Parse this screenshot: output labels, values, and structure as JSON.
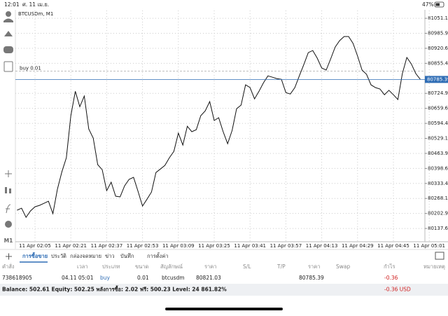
{
  "status_bar": {
    "time": "12:01",
    "date": "ศ. 11 เม.ย.",
    "battery": "47%"
  },
  "chart_data": {
    "type": "line",
    "title": "BTCUSDm, M1",
    "categories": [
      null,
      null,
      null,
      null,
      "11 Apr 02:05",
      null,
      null,
      null,
      null,
      null,
      null,
      null,
      "11 Apr 02:21",
      null,
      null,
      null,
      null,
      null,
      null,
      null,
      "11 Apr 02:37",
      null,
      null,
      null,
      null,
      null,
      null,
      null,
      "11 Apr 02:53",
      null,
      null,
      null,
      null,
      null,
      null,
      null,
      "11 Apr 03:09",
      null,
      null,
      null,
      null,
      null,
      null,
      null,
      "11 Apr 03:25",
      null,
      null,
      null,
      null,
      null,
      null,
      null,
      "11 Apr 03:41",
      null,
      null,
      null,
      null,
      null,
      null,
      null,
      "11 Apr 03:57",
      null,
      null,
      null,
      null,
      null,
      null,
      null,
      "11 Apr 04:13",
      null,
      null,
      null,
      null,
      null,
      null,
      null,
      "11 Apr 04:29",
      null,
      null,
      null,
      null,
      null,
      null,
      null,
      "11 Apr 04:45",
      null,
      null,
      null,
      null,
      null,
      null,
      null,
      "11 Apr 05:01"
    ],
    "series": [
      {
        "name": "BTCUSDm",
        "color": "#111111",
        "values": [
          80217,
          80226,
          80186,
          80214,
          80232,
          80238,
          80247,
          80256,
          80202,
          80308,
          80384,
          80445,
          80628,
          80734,
          80667,
          80713,
          80570,
          80530,
          80415,
          80393,
          80302,
          80339,
          80278,
          80275,
          80323,
          80351,
          80360,
          80299,
          80235,
          80265,
          80296,
          80381,
          80396,
          80412,
          80445,
          80473,
          80552,
          80500,
          80582,
          80558,
          80567,
          80628,
          80649,
          80689,
          80607,
          80619,
          80558,
          80506,
          80564,
          80658,
          80674,
          80762,
          80750,
          80701,
          80734,
          80771,
          80801,
          80795,
          80789,
          80786,
          80728,
          80722,
          80750,
          80801,
          80850,
          80902,
          80911,
          80878,
          80835,
          80826,
          80875,
          80926,
          80954,
          80972,
          80972,
          80942,
          80887,
          80826,
          80808,
          80762,
          80750,
          80744,
          80719,
          80738,
          80719,
          80698,
          80811,
          80881,
          80853,
          80811,
          80786,
          null,
          null
        ]
      }
    ],
    "ylim": [
      80080,
      81085
    ],
    "yticks": [
      81051.15,
      {
        "value": 80985.9,
        "label": "80985.90"
      },
      80920.65,
      {
        "value": 80855.4,
        "label": "80855.40"
      },
      {
        "value": 80724.9,
        "label": "80724.90"
      },
      80659.65,
      {
        "value": 80594.4,
        "label": "80594.40"
      },
      80529.15,
      {
        "value": 80463.9,
        "label": "80463.90"
      },
      80398.65,
      {
        "value": 80333.4,
        "label": "80333.40"
      },
      80268.15,
      {
        "value": 80202.9,
        "label": "80202.90"
      },
      80137.65
    ],
    "grid": true,
    "price_line": {
      "value": 80785.39,
      "color": "#2f6db5"
    },
    "order_line": {
      "label": "buy 0.01",
      "value": 80821.03
    }
  },
  "toolbar": {
    "timeframe": "M1"
  },
  "tabs": [
    "การซื้อขาย",
    "ประวัติ",
    "กล่องจดหมาย",
    "ข่าว",
    "บันทึก",
    "การตั้งค่า"
  ],
  "table": {
    "headers": [
      "คำสั่ง",
      "เวลา",
      "ประเภท",
      "ขนาด",
      "สัญลักษณ์",
      "ราคา",
      "S/L",
      "T/P",
      "ราคา",
      "Swap",
      "กำไร",
      "หมายเหตุ"
    ],
    "row": {
      "order": "738618905",
      "time": "04.11 05:01",
      "type": "buy",
      "volume": "0.01",
      "symbol": "btcusdm",
      "open_price": "80821.03",
      "price": "80785.39",
      "profit": "-0.36"
    }
  },
  "account": {
    "summary": "Balance: 502.61 Equity: 502.25 พลังการซื้อ: 2.02 ฟรี: 500.23 Level: 24 861.82%",
    "total": "-0.36 USD"
  }
}
